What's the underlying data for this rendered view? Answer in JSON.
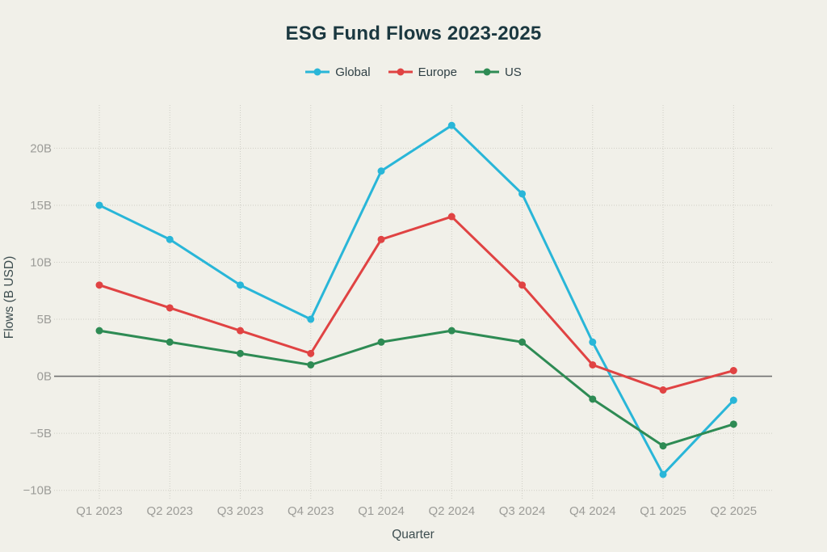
{
  "page": {
    "background": "#f1f0e9"
  },
  "chart_data": {
    "type": "line",
    "title": "ESG Fund Flows 2023-2025",
    "xlabel": "Quarter",
    "ylabel": "Flows (B USD)",
    "categories": [
      "Q1 2023",
      "Q2 2023",
      "Q3 2023",
      "Q4 2023",
      "Q1 2024",
      "Q2 2024",
      "Q3 2024",
      "Q4 2024",
      "Q1 2025",
      "Q2 2025"
    ],
    "series": [
      {
        "name": "Global",
        "color": "#29b6d8",
        "values": [
          15,
          12,
          8,
          5,
          18,
          22,
          16,
          3,
          -8.6,
          -2.1
        ]
      },
      {
        "name": "Europe",
        "color": "#e04343",
        "values": [
          8,
          6,
          4,
          2,
          12,
          14,
          8,
          1,
          -1.2,
          0.5
        ]
      },
      {
        "name": "US",
        "color": "#2e8b54",
        "values": [
          4,
          3,
          2,
          1,
          3,
          4,
          3,
          -2,
          -6.1,
          -4.2
        ]
      }
    ],
    "yticks": [
      {
        "value": 20,
        "label": "20B"
      },
      {
        "value": 15,
        "label": "15B"
      },
      {
        "value": 10,
        "label": "10B"
      },
      {
        "value": 5,
        "label": "5B"
      },
      {
        "value": 0,
        "label": "0B"
      },
      {
        "value": -5,
        "label": "−5B"
      },
      {
        "value": -10,
        "label": "−10B"
      }
    ],
    "ylim": [
      -10.7,
      23.8
    ],
    "grid": true,
    "legend_position": "top",
    "colors": {
      "title": "#1b3840",
      "tick_labels": "#9c9c98",
      "axis_titles": "#3e4e50",
      "legend_text": "#2e3f44",
      "grid_line": "#cfcec5",
      "zero_line": "#707070"
    }
  }
}
